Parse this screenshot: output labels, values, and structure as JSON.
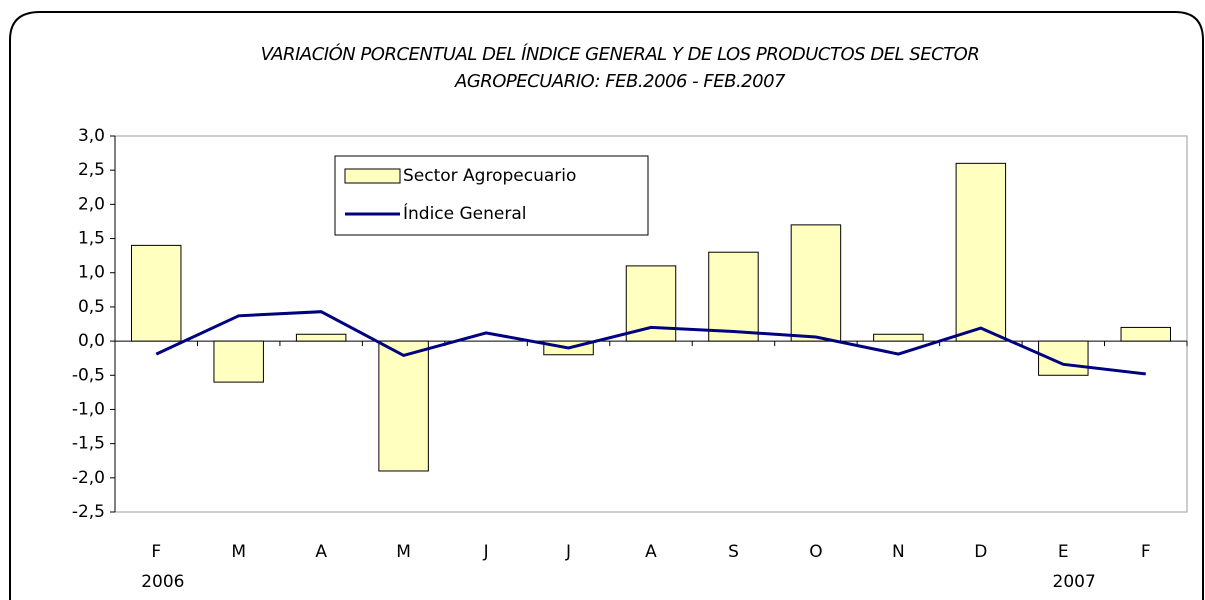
{
  "chart_data": {
    "type": "bar-line",
    "title": [
      "VARIACIÓN PORCENTUAL DEL ÍNDICE GENERAL Y DE LOS PRODUCTOS DEL SECTOR",
      "AGROPECUARIO: FEB.2006 - FEB.2007"
    ],
    "categories": [
      "F",
      "M",
      "A",
      "M",
      "J",
      "J",
      "A",
      "S",
      "O",
      "N",
      "D",
      "E",
      "F"
    ],
    "years": [
      "2006",
      null,
      null,
      null,
      null,
      null,
      null,
      null,
      null,
      null,
      null,
      null,
      "2007"
    ],
    "series": [
      {
        "name": "Sector Agropecuario",
        "type": "bar",
        "color": "#ffffc0",
        "values": [
          1.4,
          -0.6,
          0.1,
          -1.9,
          0,
          -0.2,
          1.1,
          1.3,
          1.7,
          0.1,
          2.6,
          -0.5,
          0.2
        ]
      },
      {
        "name": "Índice General",
        "type": "line",
        "color": "#000080",
        "values": [
          -0.19,
          0.37,
          0.43,
          -0.21,
          0.12,
          -0.1,
          0.2,
          0.14,
          0.06,
          -0.19,
          0.19,
          -0.34,
          -0.48
        ]
      }
    ],
    "ylim": [
      -2.5,
      3
    ],
    "yticks": [
      {
        "value": -2.5,
        "label": "-2,5"
      },
      {
        "value": -2,
        "label": "-2,0"
      },
      {
        "value": -1.5,
        "label": "-1,5"
      },
      {
        "value": -1,
        "label": "-1,0"
      },
      {
        "value": -0.5,
        "label": "-0,5"
      },
      {
        "value": 0,
        "label": "0,0"
      },
      {
        "value": 0.5,
        "label": "0,5"
      },
      {
        "value": 1,
        "label": "1,0"
      },
      {
        "value": 1.5,
        "label": "1,5"
      },
      {
        "value": 2,
        "label": "2,0"
      },
      {
        "value": 2.5,
        "label": "2,5"
      },
      {
        "value": 3,
        "label": "3,0"
      }
    ],
    "legend": "top-left"
  }
}
